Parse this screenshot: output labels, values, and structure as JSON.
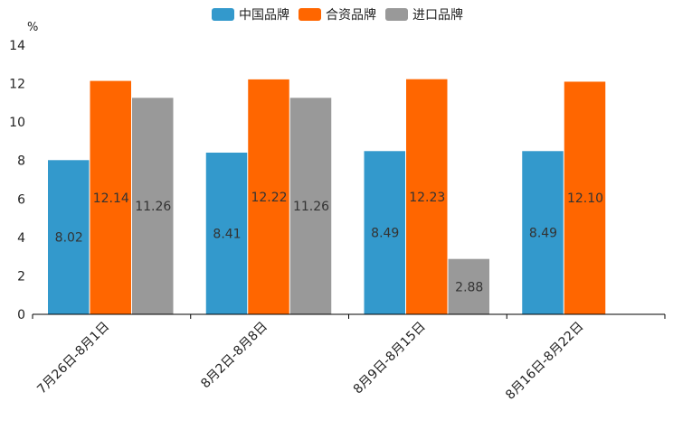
{
  "chart_data": {
    "type": "bar",
    "title": "",
    "ylabel": "%",
    "xlabel": "",
    "ylim": [
      0,
      14
    ],
    "yticks": [
      0,
      2,
      4,
      6,
      8,
      10,
      12,
      14
    ],
    "categories": [
      "7月26日-8月1日",
      "8月2日-8月8日",
      "8月9日-8月15日",
      "8月16日-8月22日"
    ],
    "series": [
      {
        "name": "中国品牌",
        "color": "#3399CC",
        "values": [
          8.02,
          8.41,
          8.49,
          8.49
        ],
        "labels": [
          "8.02",
          "8.41",
          "8.49",
          "8.49"
        ]
      },
      {
        "name": "合资品牌",
        "color": "#FF6600",
        "values": [
          12.14,
          12.22,
          12.23,
          12.1
        ],
        "labels": [
          "12.14",
          "12.22",
          "12.23",
          "12.10"
        ]
      },
      {
        "name": "进口品牌",
        "color": "#999999",
        "values": [
          11.26,
          11.26,
          2.88,
          null
        ],
        "labels": [
          "11.26",
          "11.26",
          "2.88",
          null
        ]
      }
    ],
    "legend_position": "top-center",
    "grid": false
  }
}
